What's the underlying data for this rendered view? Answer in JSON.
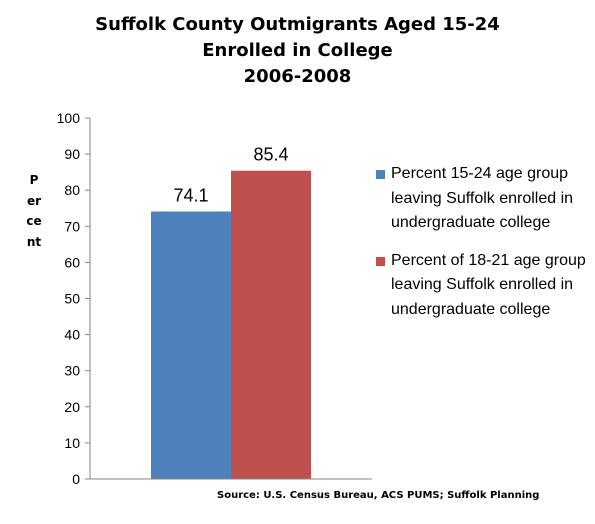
{
  "chart_data": {
    "type": "bar",
    "title_lines": [
      "Suffolk County Outmigrants Aged 15-24",
      "Enrolled in College",
      "2006-2008"
    ],
    "ylabel": "Percent",
    "ylim": [
      0,
      100
    ],
    "yticks": [
      "0",
      "10",
      "20",
      "30",
      "40",
      "50",
      "60",
      "70",
      "80",
      "90",
      "100"
    ],
    "grid": false,
    "legend_position": "right",
    "series": [
      {
        "name": "Percent 15-24 age group leaving Suffolk enrolled in undergraduate college",
        "value": 74.1,
        "label": "74.1",
        "color": "#4F81BD"
      },
      {
        "name": "Percent of 18-21 age group leaving Suffolk enrolled in undergraduate college",
        "value": 85.4,
        "label": "85.4",
        "color": "#C0504D"
      }
    ],
    "source": "Source: U.S. Census Bureau, ACS PUMS; Suffolk Planning"
  }
}
